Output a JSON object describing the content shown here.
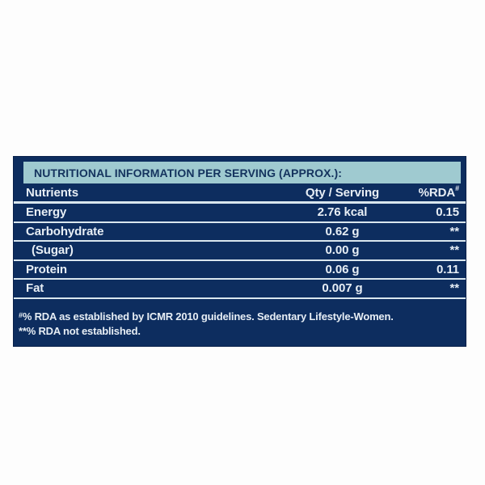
{
  "label": {
    "title": "NUTRITIONAL INFORMATION PER SERVING (APPROX.):",
    "colors": {
      "page_bg": "#fdfdfd",
      "panel_bg": "#0d2d5f",
      "panel_border": "#09214a",
      "banner_bg": "#9fcad0",
      "banner_text": "#14335e",
      "text": "#e7eef5",
      "rule": "#d9e6ee"
    },
    "table": {
      "header": {
        "nutrients": "Nutrients",
        "qty": "Qty / Serving",
        "rda": "%RDA",
        "rda_sup": "#"
      },
      "rows": [
        {
          "nutrient": "Energy",
          "qty": "2.76 kcal",
          "rda": "0.15"
        },
        {
          "nutrient": "Carbohydrate",
          "qty": "0.62 g",
          "rda": "**"
        },
        {
          "nutrient": "(Sugar)",
          "qty": "0.00 g",
          "rda": "**"
        },
        {
          "nutrient": "Protein",
          "qty": "0.06 g",
          "rda": "0.11"
        },
        {
          "nutrient": "Fat",
          "qty": "0.007 g",
          "rda": "**"
        }
      ]
    },
    "footnotes": {
      "line1_sup": "#",
      "line1": "% RDA as established by ICMR 2010 guidelines. Sedentary Lifestyle-Women.",
      "line2": "**% RDA not established."
    }
  }
}
